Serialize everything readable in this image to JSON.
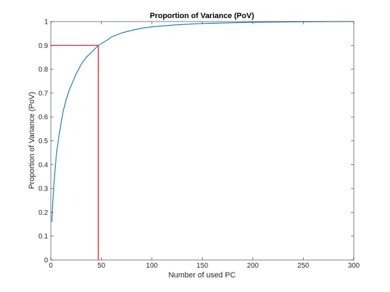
{
  "chart_data": {
    "type": "line",
    "title": "Proportion of Variance (PoV)",
    "xlabel": "Number of used PC",
    "ylabel": "Proportion of Variance (PoV)",
    "xlim": [
      0,
      300
    ],
    "ylim": [
      0,
      1
    ],
    "x_ticks": [
      0,
      50,
      100,
      150,
      200,
      250,
      300
    ],
    "y_ticks": [
      0,
      0.1,
      0.2,
      0.3,
      0.4,
      0.5,
      0.6,
      0.7,
      0.8,
      0.9,
      1
    ],
    "x_tick_labels": [
      "0",
      "50",
      "100",
      "150",
      "200",
      "250",
      "300"
    ],
    "y_tick_labels": [
      "0",
      "0.1",
      "0.2",
      "0.3",
      "0.4",
      "0.5",
      "0.6",
      "0.7",
      "0.8",
      "0.9",
      "1"
    ],
    "grid": false,
    "legend": "none",
    "series": [
      {
        "color": "#0072bd",
        "x": [
          1,
          2,
          3,
          4,
          5,
          6,
          8,
          10,
          12,
          15,
          18,
          20,
          25,
          30,
          35,
          40,
          47,
          55,
          60,
          70,
          80,
          90,
          100,
          120,
          140,
          150,
          160,
          180,
          200,
          220,
          250,
          280,
          300
        ],
        "y": [
          0.16,
          0.25,
          0.31,
          0.37,
          0.42,
          0.46,
          0.52,
          0.57,
          0.62,
          0.67,
          0.71,
          0.73,
          0.78,
          0.82,
          0.85,
          0.87,
          0.9,
          0.92,
          0.935,
          0.952,
          0.963,
          0.972,
          0.978,
          0.985,
          0.99,
          0.992,
          0.993,
          0.995,
          0.997,
          0.998,
          0.999,
          1.0,
          1.0
        ]
      }
    ],
    "threshold": {
      "color": "#ff0000",
      "x": 47,
      "y": 0.9
    }
  }
}
